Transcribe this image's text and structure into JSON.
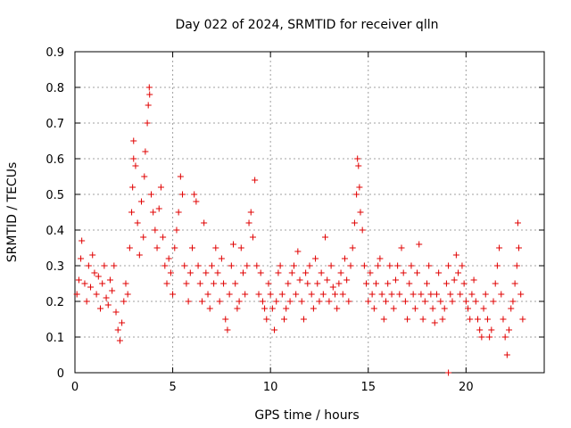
{
  "chart_data": {
    "type": "scatter",
    "title": "Day 022 of 2024, SRMTID for receiver qlln",
    "xlabel": "GPS time / hours",
    "ylabel": "SRMTID / TECUs",
    "xlim": [
      0,
      24
    ],
    "ylim": [
      0,
      0.9
    ],
    "xticks": [
      "0",
      "5",
      "10",
      "15",
      "20"
    ],
    "xtick_values": [
      0,
      5,
      10,
      15,
      20
    ],
    "yticks": [
      "0",
      "0.1",
      "0.2",
      "0.3",
      "0.4",
      "0.5",
      "0.6",
      "0.7",
      "0.8",
      "0.9"
    ],
    "ytick_values": [
      0,
      0.1,
      0.2,
      0.3,
      0.4,
      0.5,
      0.6,
      0.7,
      0.8,
      0.9
    ],
    "grid": true,
    "marker": "+",
    "series": [
      {
        "name": "SRMTID",
        "color": "#e00000",
        "points": [
          [
            0.1,
            0.22
          ],
          [
            0.2,
            0.26
          ],
          [
            0.3,
            0.32
          ],
          [
            0.35,
            0.37
          ],
          [
            0.5,
            0.25
          ],
          [
            0.6,
            0.2
          ],
          [
            0.7,
            0.3
          ],
          [
            0.8,
            0.24
          ],
          [
            0.9,
            0.33
          ],
          [
            1.0,
            0.28
          ],
          [
            1.1,
            0.22
          ],
          [
            1.2,
            0.27
          ],
          [
            1.3,
            0.18
          ],
          [
            1.4,
            0.25
          ],
          [
            1.5,
            0.3
          ],
          [
            1.6,
            0.21
          ],
          [
            1.7,
            0.19
          ],
          [
            1.8,
            0.26
          ],
          [
            1.9,
            0.23
          ],
          [
            2.0,
            0.3
          ],
          [
            2.1,
            0.17
          ],
          [
            2.2,
            0.12
          ],
          [
            2.3,
            0.09
          ],
          [
            2.4,
            0.14
          ],
          [
            2.5,
            0.2
          ],
          [
            2.6,
            0.25
          ],
          [
            2.7,
            0.22
          ],
          [
            2.8,
            0.35
          ],
          [
            2.9,
            0.45
          ],
          [
            2.95,
            0.52
          ],
          [
            3.0,
            0.6
          ],
          [
            3.0,
            0.65
          ],
          [
            3.1,
            0.58
          ],
          [
            3.2,
            0.42
          ],
          [
            3.3,
            0.33
          ],
          [
            3.4,
            0.48
          ],
          [
            3.5,
            0.38
          ],
          [
            3.55,
            0.55
          ],
          [
            3.6,
            0.62
          ],
          [
            3.7,
            0.7
          ],
          [
            3.75,
            0.75
          ],
          [
            3.8,
            0.8
          ],
          [
            3.82,
            0.78
          ],
          [
            3.9,
            0.5
          ],
          [
            4.0,
            0.45
          ],
          [
            4.1,
            0.4
          ],
          [
            4.2,
            0.35
          ],
          [
            4.3,
            0.46
          ],
          [
            4.4,
            0.52
          ],
          [
            4.5,
            0.38
          ],
          [
            4.6,
            0.3
          ],
          [
            4.7,
            0.25
          ],
          [
            4.8,
            0.32
          ],
          [
            4.9,
            0.28
          ],
          [
            5.0,
            0.22
          ],
          [
            5.1,
            0.35
          ],
          [
            5.2,
            0.4
          ],
          [
            5.3,
            0.45
          ],
          [
            5.4,
            0.55
          ],
          [
            5.5,
            0.5
          ],
          [
            5.6,
            0.3
          ],
          [
            5.7,
            0.25
          ],
          [
            5.8,
            0.2
          ],
          [
            5.9,
            0.28
          ],
          [
            6.0,
            0.35
          ],
          [
            6.1,
            0.5
          ],
          [
            6.2,
            0.48
          ],
          [
            6.3,
            0.3
          ],
          [
            6.4,
            0.25
          ],
          [
            6.5,
            0.2
          ],
          [
            6.6,
            0.42
          ],
          [
            6.7,
            0.28
          ],
          [
            6.8,
            0.22
          ],
          [
            6.9,
            0.18
          ],
          [
            7.0,
            0.3
          ],
          [
            7.1,
            0.25
          ],
          [
            7.2,
            0.35
          ],
          [
            7.3,
            0.28
          ],
          [
            7.4,
            0.2
          ],
          [
            7.5,
            0.32
          ],
          [
            7.6,
            0.25
          ],
          [
            7.7,
            0.15
          ],
          [
            7.8,
            0.12
          ],
          [
            7.9,
            0.22
          ],
          [
            8.0,
            0.3
          ],
          [
            8.1,
            0.36
          ],
          [
            8.2,
            0.25
          ],
          [
            8.3,
            0.18
          ],
          [
            8.4,
            0.2
          ],
          [
            8.5,
            0.35
          ],
          [
            8.6,
            0.28
          ],
          [
            8.7,
            0.22
          ],
          [
            8.8,
            0.3
          ],
          [
            8.9,
            0.42
          ],
          [
            9.0,
            0.45
          ],
          [
            9.1,
            0.38
          ],
          [
            9.2,
            0.54
          ],
          [
            9.3,
            0.3
          ],
          [
            9.4,
            0.22
          ],
          [
            9.5,
            0.28
          ],
          [
            9.6,
            0.2
          ],
          [
            9.7,
            0.18
          ],
          [
            9.8,
            0.15
          ],
          [
            9.9,
            0.25
          ],
          [
            10.0,
            0.22
          ],
          [
            10.1,
            0.18
          ],
          [
            10.2,
            0.12
          ],
          [
            10.3,
            0.2
          ],
          [
            10.4,
            0.28
          ],
          [
            10.5,
            0.3
          ],
          [
            10.6,
            0.22
          ],
          [
            10.7,
            0.15
          ],
          [
            10.8,
            0.18
          ],
          [
            10.9,
            0.25
          ],
          [
            11.0,
            0.2
          ],
          [
            11.1,
            0.28
          ],
          [
            11.2,
            0.3
          ],
          [
            11.3,
            0.22
          ],
          [
            11.4,
            0.34
          ],
          [
            11.5,
            0.26
          ],
          [
            11.6,
            0.2
          ],
          [
            11.7,
            0.15
          ],
          [
            11.8,
            0.28
          ],
          [
            11.9,
            0.25
          ],
          [
            12.0,
            0.3
          ],
          [
            12.1,
            0.22
          ],
          [
            12.2,
            0.18
          ],
          [
            12.3,
            0.32
          ],
          [
            12.4,
            0.25
          ],
          [
            12.5,
            0.2
          ],
          [
            12.6,
            0.28
          ],
          [
            12.7,
            0.22
          ],
          [
            12.8,
            0.38
          ],
          [
            12.9,
            0.26
          ],
          [
            13.0,
            0.2
          ],
          [
            13.1,
            0.3
          ],
          [
            13.2,
            0.24
          ],
          [
            13.3,
            0.22
          ],
          [
            13.4,
            0.18
          ],
          [
            13.5,
            0.25
          ],
          [
            13.6,
            0.28
          ],
          [
            13.7,
            0.22
          ],
          [
            13.8,
            0.32
          ],
          [
            13.9,
            0.26
          ],
          [
            14.0,
            0.2
          ],
          [
            14.1,
            0.3
          ],
          [
            14.2,
            0.35
          ],
          [
            14.3,
            0.42
          ],
          [
            14.4,
            0.5
          ],
          [
            14.45,
            0.6
          ],
          [
            14.5,
            0.58
          ],
          [
            14.55,
            0.52
          ],
          [
            14.6,
            0.45
          ],
          [
            14.7,
            0.4
          ],
          [
            14.8,
            0.3
          ],
          [
            14.9,
            0.25
          ],
          [
            15.0,
            0.2
          ],
          [
            15.1,
            0.28
          ],
          [
            15.2,
            0.22
          ],
          [
            15.3,
            0.18
          ],
          [
            15.4,
            0.25
          ],
          [
            15.5,
            0.3
          ],
          [
            15.6,
            0.32
          ],
          [
            15.7,
            0.22
          ],
          [
            15.8,
            0.15
          ],
          [
            15.9,
            0.2
          ],
          [
            16.0,
            0.25
          ],
          [
            16.1,
            0.3
          ],
          [
            16.2,
            0.22
          ],
          [
            16.3,
            0.18
          ],
          [
            16.4,
            0.26
          ],
          [
            16.5,
            0.3
          ],
          [
            16.6,
            0.22
          ],
          [
            16.7,
            0.35
          ],
          [
            16.8,
            0.28
          ],
          [
            16.9,
            0.2
          ],
          [
            17.0,
            0.15
          ],
          [
            17.1,
            0.25
          ],
          [
            17.2,
            0.3
          ],
          [
            17.3,
            0.22
          ],
          [
            17.4,
            0.18
          ],
          [
            17.5,
            0.28
          ],
          [
            17.6,
            0.36
          ],
          [
            17.7,
            0.22
          ],
          [
            17.8,
            0.15
          ],
          [
            17.9,
            0.2
          ],
          [
            18.0,
            0.25
          ],
          [
            18.1,
            0.3
          ],
          [
            18.2,
            0.22
          ],
          [
            18.3,
            0.18
          ],
          [
            18.4,
            0.14
          ],
          [
            18.5,
            0.22
          ],
          [
            18.6,
            0.28
          ],
          [
            18.7,
            0.2
          ],
          [
            18.8,
            0.15
          ],
          [
            18.9,
            0.18
          ],
          [
            19.0,
            0.25
          ],
          [
            19.1,
            0.3
          ],
          [
            19.2,
            0.22
          ],
          [
            19.3,
            0.2
          ],
          [
            19.4,
            0.26
          ],
          [
            19.5,
            0.33
          ],
          [
            19.6,
            0.28
          ],
          [
            19.7,
            0.22
          ],
          [
            19.8,
            0.3
          ],
          [
            19.9,
            0.25
          ],
          [
            20.0,
            0.2
          ],
          [
            20.1,
            0.18
          ],
          [
            20.2,
            0.15
          ],
          [
            20.3,
            0.22
          ],
          [
            20.4,
            0.26
          ],
          [
            20.5,
            0.2
          ],
          [
            20.6,
            0.15
          ],
          [
            20.7,
            0.12
          ],
          [
            20.8,
            0.1
          ],
          [
            20.9,
            0.18
          ],
          [
            21.0,
            0.22
          ],
          [
            21.1,
            0.15
          ],
          [
            21.2,
            0.1
          ],
          [
            21.3,
            0.12
          ],
          [
            21.4,
            0.2
          ],
          [
            21.5,
            0.25
          ],
          [
            21.6,
            0.3
          ],
          [
            21.7,
            0.35
          ],
          [
            21.8,
            0.22
          ],
          [
            21.9,
            0.15
          ],
          [
            22.0,
            0.1
          ],
          [
            22.1,
            0.05
          ],
          [
            22.2,
            0.12
          ],
          [
            22.3,
            0.18
          ],
          [
            22.4,
            0.2
          ],
          [
            22.5,
            0.25
          ],
          [
            22.6,
            0.3
          ],
          [
            22.65,
            0.42
          ],
          [
            22.7,
            0.35
          ],
          [
            22.8,
            0.22
          ],
          [
            22.9,
            0.15
          ],
          [
            19.1,
            0.0
          ]
        ]
      }
    ]
  }
}
